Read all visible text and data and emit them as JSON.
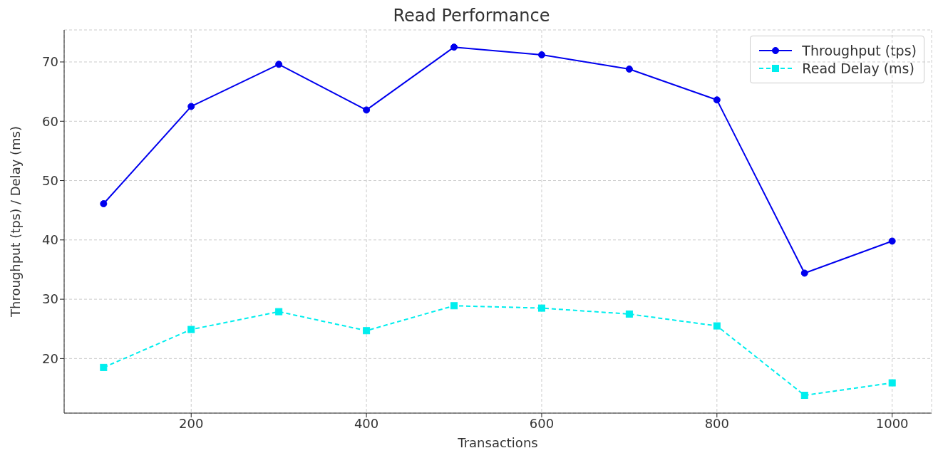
{
  "chart_data": {
    "type": "line",
    "title": "Read Performance",
    "xlabel": "Transactions",
    "ylabel": "Throughput (tps) / Delay (ms)",
    "x": [
      100,
      200,
      300,
      400,
      500,
      600,
      700,
      800,
      900,
      1000
    ],
    "series": [
      {
        "name": "Throughput (tps)",
        "color": "#0000ee",
        "marker": "circle",
        "line_style": "solid",
        "values": [
          46.1,
          62.5,
          69.6,
          61.9,
          72.5,
          71.2,
          68.8,
          63.6,
          34.4,
          39.8
        ]
      },
      {
        "name": "Read Delay (ms)",
        "color": "#00eeee",
        "marker": "square",
        "line_style": "dashed",
        "values": [
          18.5,
          24.9,
          27.9,
          24.7,
          28.9,
          28.5,
          27.5,
          25.5,
          13.8,
          15.9
        ]
      }
    ],
    "xlim": [
      55,
      1045
    ],
    "xticks": [
      200,
      400,
      600,
      800,
      1000
    ],
    "ylim": [
      10.8,
      75.4
    ],
    "yticks": [
      20,
      30,
      40,
      50,
      60,
      70
    ],
    "grid": true,
    "legend": "top right"
  }
}
